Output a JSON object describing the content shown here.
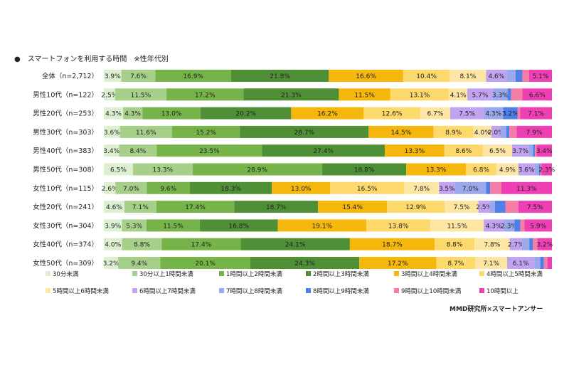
{
  "chart_data": {
    "type": "bar",
    "orientation": "horizontal",
    "stacked": true,
    "percent": true,
    "title": "●　スマートフォンを利用する時間　※性年代別",
    "source": "MMD研究所×スマートアンサー",
    "legend_position": "bottom",
    "colors": [
      "#dcefd0",
      "#a6d08a",
      "#76b348",
      "#4f8f35",
      "#f5b70b",
      "#fdd96b",
      "#fde6a4",
      "#c2a3f2",
      "#9ba8ec",
      "#4f80e8",
      "#f47da6",
      "#ee3fb5"
    ],
    "series_names": [
      "30分未満",
      "30分以上1時間未満",
      "1時間以上2時間未満",
      "2時間以上3時間未満",
      "3時間以上4時間未満",
      "4時間以上5時間未満",
      "5時間以上6時間未満",
      "6時間以上7時間未満",
      "7時間以上8時間未満",
      "8時間以上9時間未満",
      "9時間以上10時間未満",
      "10時間以上"
    ],
    "categories": [
      "全体（n=2,712）",
      "男性10代（n=122）",
      "男性20代（n=253）",
      "男性30代（n=303）",
      "男性40代（n=383）",
      "男性50代（n=308）",
      "女性10代（n=115）",
      "女性20代（n=241）",
      "女性30代（n=304）",
      "女性40代（n=374）",
      "女性50代（n=309）"
    ],
    "rows": [
      [
        3.9,
        7.6,
        16.9,
        21.8,
        16.6,
        10.4,
        8.1,
        4.6,
        2.0,
        1.5,
        1.5,
        5.1
      ],
      [
        2.5,
        11.5,
        17.2,
        21.3,
        11.5,
        13.1,
        4.1,
        5.7,
        3.3,
        0.8,
        2.5,
        6.6
      ],
      [
        4.3,
        4.3,
        13.0,
        20.2,
        16.2,
        12.6,
        6.7,
        7.5,
        4.3,
        3.2,
        0.6,
        7.1
      ],
      [
        3.6,
        11.6,
        15.2,
        28.7,
        14.5,
        8.9,
        4.0,
        2.0,
        1.3,
        0.7,
        1.6,
        7.9
      ],
      [
        3.4,
        8.4,
        23.5,
        27.4,
        13.3,
        8.6,
        6.5,
        3.7,
        1.0,
        0.4,
        0.4,
        3.4
      ],
      [
        6.5,
        13.3,
        28.9,
        18.8,
        13.3,
        6.8,
        4.9,
        3.6,
        1.0,
        0.3,
        0.3,
        2.3
      ],
      [
        2.6,
        7.0,
        9.6,
        18.3,
        13.0,
        16.5,
        7.8,
        3.5,
        7.0,
        0.9,
        2.5,
        11.3
      ],
      [
        4.6,
        7.1,
        17.4,
        18.7,
        15.4,
        12.9,
        7.5,
        2.5,
        1.2,
        2.3,
        2.9,
        7.5
      ],
      [
        3.9,
        5.3,
        11.5,
        16.8,
        19.1,
        13.8,
        11.5,
        4.3,
        2.3,
        1.3,
        0.9,
        5.9
      ],
      [
        4.0,
        8.8,
        17.4,
        24.1,
        18.7,
        8.8,
        7.8,
        2.7,
        1.6,
        0.8,
        1.0,
        3.2
      ],
      [
        3.2,
        9.4,
        20.1,
        24.3,
        17.2,
        8.7,
        7.1,
        6.1,
        1.3,
        0.8,
        0.8,
        1.0
      ]
    ],
    "labels": [
      [
        "3.9%",
        "7.6%",
        "16.9%",
        "21.8%",
        "16.6%",
        "10.4%",
        "8.1%",
        "4.6%",
        "",
        "",
        "",
        "5.1%"
      ],
      [
        "2.5%",
        "11.5%",
        "17.2%",
        "21.3%",
        "11.5%",
        "13.1%",
        "4.1%",
        "5.7%",
        "3.3%",
        "",
        "",
        "6.6%"
      ],
      [
        "4.3%",
        "4.3%",
        "13.0%",
        "20.2%",
        "16.2%",
        "12.6%",
        "6.7%",
        "7.5%",
        "4.3%",
        "3.2%",
        "",
        "7.1%"
      ],
      [
        "3.6%",
        "11.6%",
        "15.2%",
        "28.7%",
        "14.5%",
        "8.9%",
        "4.0%",
        "2.0%",
        "",
        "",
        "",
        "7.9%"
      ],
      [
        "3.4%",
        "8.4%",
        "23.5%",
        "27.4%",
        "13.3%",
        "8.6%",
        "6.5%",
        "3.7%",
        "",
        "",
        "",
        "3.4%"
      ],
      [
        "6.5%",
        "13.3%",
        "28.9%",
        "18.8%",
        "13.3%",
        "6.8%",
        "4.9%",
        "3.6%",
        "",
        "",
        "",
        "2.3%"
      ],
      [
        "2.6%",
        "7.0%",
        "9.6%",
        "18.3%",
        "13.0%",
        "16.5%",
        "7.8%",
        "3.5%",
        "7.0%",
        "",
        "",
        "11.3%"
      ],
      [
        "4.6%",
        "7.1%",
        "17.4%",
        "18.7%",
        "15.4%",
        "12.9%",
        "7.5%",
        "2.5%",
        "",
        "",
        "",
        "7.5%"
      ],
      [
        "3.9%",
        "5.3%",
        "11.5%",
        "16.8%",
        "19.1%",
        "13.8%",
        "11.5%",
        "4.3%",
        "2.3%",
        "",
        "",
        "5.9%"
      ],
      [
        "4.0%",
        "8.8%",
        "17.4%",
        "24.1%",
        "18.7%",
        "8.8%",
        "7.8%",
        "2.7%",
        "",
        "",
        "",
        "3.2%"
      ],
      [
        "3.2%",
        "9.4%",
        "20.1%",
        "24.3%",
        "17.2%",
        "8.7%",
        "7.1%",
        "6.1%",
        "",
        "",
        "",
        ""
      ]
    ]
  }
}
